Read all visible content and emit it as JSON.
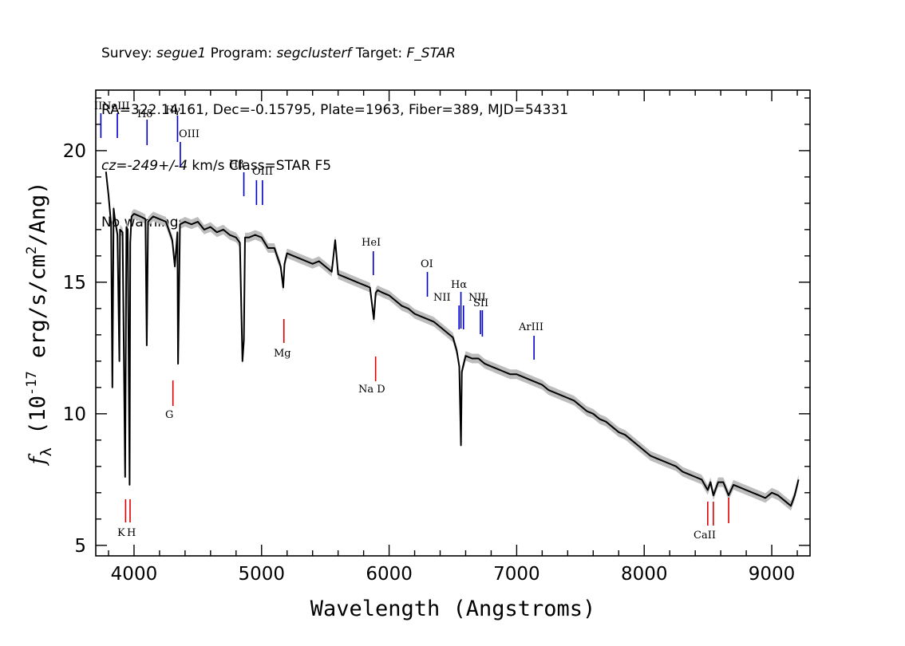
{
  "header": {
    "line1": {
      "survey_label": "Survey: ",
      "survey": "segue1",
      "program_label": " Program: ",
      "program": "segclusterf",
      "target_label": " Target: ",
      "target": "F_STAR"
    },
    "line2": "RA=322.14161, Dec=-0.15795, Plate=1963, Fiber=389, MJD=54331",
    "line3": {
      "cz": "cz=-249+/-4",
      "rest": " km/s Class=STAR F5"
    },
    "line4": "No warnings."
  },
  "chart_data": {
    "type": "line",
    "title": "",
    "xlabel": "Wavelength (Angstroms)",
    "ylabel": "f_λ (10^-17 erg/s/cm^2/Ang)",
    "xlim": [
      3700,
      9300
    ],
    "ylim": [
      4.6,
      22.3
    ],
    "xticks": [
      4000,
      5000,
      6000,
      7000,
      8000,
      9000
    ],
    "yticks": [
      5,
      10,
      15,
      20
    ],
    "grid": false,
    "legend": "none",
    "colors": {
      "flux": "#000000",
      "error_band": "#bdbdbd",
      "emission": "#0000cc",
      "absorption": "#dd0000"
    },
    "series": [
      {
        "values_note": "",
        "x": [
          3780,
          3800,
          3820,
          3830,
          3840,
          3850,
          3870,
          3885,
          3890,
          3910,
          3930,
          3940,
          3950,
          3965,
          3970,
          3980,
          4000,
          4050,
          4090,
          4100,
          4110,
          4150,
          4200,
          4250,
          4300,
          4320,
          4340,
          4345,
          4360,
          4400,
          4450,
          4500,
          4550,
          4600,
          4650,
          4700,
          4750,
          4800,
          4830,
          4850,
          4861,
          4870,
          4900,
          4950,
          5000,
          5050,
          5100,
          5150,
          5170,
          5180,
          5200,
          5250,
          5300,
          5350,
          5400,
          5450,
          5500,
          5550,
          5577,
          5600,
          5650,
          5700,
          5750,
          5800,
          5850,
          5880,
          5895,
          5910,
          5950,
          6000,
          6050,
          6100,
          6150,
          6200,
          6250,
          6300,
          6350,
          6400,
          6450,
          6500,
          6530,
          6550,
          6563,
          6570,
          6600,
          6650,
          6700,
          6750,
          6800,
          6850,
          6900,
          6950,
          7000,
          7050,
          7100,
          7150,
          7200,
          7250,
          7300,
          7350,
          7400,
          7450,
          7500,
          7550,
          7600,
          7650,
          7700,
          7750,
          7800,
          7850,
          7900,
          7950,
          8000,
          8050,
          8100,
          8150,
          8200,
          8250,
          8300,
          8350,
          8400,
          8450,
          8498,
          8520,
          8542,
          8580,
          8620,
          8662,
          8700,
          8750,
          8800,
          8850,
          8900,
          8950,
          9000,
          9050,
          9100,
          9150,
          9180,
          9210
        ],
        "y": [
          19.2,
          18.3,
          17.2,
          11.0,
          17.8,
          17.4,
          16.8,
          12.0,
          17.0,
          16.9,
          7.6,
          17.1,
          17.0,
          7.3,
          16.5,
          17.5,
          17.6,
          17.5,
          17.4,
          12.6,
          17.3,
          17.5,
          17.4,
          17.3,
          16.6,
          15.6,
          16.9,
          11.9,
          17.2,
          17.3,
          17.2,
          17.3,
          17.0,
          17.1,
          16.9,
          17.0,
          16.8,
          16.7,
          16.5,
          12.0,
          12.8,
          16.7,
          16.7,
          16.8,
          16.7,
          16.3,
          16.3,
          15.6,
          14.8,
          15.7,
          16.1,
          16.0,
          15.9,
          15.8,
          15.7,
          15.8,
          15.6,
          15.4,
          16.6,
          15.3,
          15.2,
          15.1,
          15.0,
          14.9,
          14.8,
          13.6,
          14.6,
          14.7,
          14.6,
          14.5,
          14.3,
          14.1,
          14.0,
          13.8,
          13.7,
          13.6,
          13.5,
          13.3,
          13.1,
          12.9,
          12.4,
          11.8,
          8.8,
          11.6,
          12.2,
          12.1,
          12.1,
          11.9,
          11.8,
          11.7,
          11.6,
          11.5,
          11.5,
          11.4,
          11.3,
          11.2,
          11.1,
          10.9,
          10.8,
          10.7,
          10.6,
          10.5,
          10.3,
          10.1,
          10.0,
          9.8,
          9.7,
          9.5,
          9.3,
          9.2,
          9.0,
          8.8,
          8.6,
          8.4,
          8.3,
          8.2,
          8.1,
          8.0,
          7.8,
          7.7,
          7.6,
          7.5,
          7.1,
          7.4,
          6.9,
          7.4,
          7.4,
          6.9,
          7.3,
          7.2,
          7.1,
          7.0,
          6.9,
          6.8,
          7.0,
          6.9,
          6.7,
          6.5,
          6.9,
          7.5
        ]
      }
    ],
    "line_annotations": [
      {
        "label": "He II",
        "x": 3740,
        "kind": "emission",
        "label_shown": "II"
      },
      {
        "label": "NeIII",
        "x": 3869,
        "kind": "emission"
      },
      {
        "label": "Hδ",
        "x": 4102,
        "kind": "emission"
      },
      {
        "label": "Hγ",
        "x": 4341,
        "kind": "emission"
      },
      {
        "label": "OIII",
        "x": 4363,
        "kind": "emission"
      },
      {
        "label": "Hβ",
        "x": 4861,
        "kind": "emission"
      },
      {
        "label": "OIII",
        "x": 4960,
        "kind": "emission"
      },
      {
        "label": "OIII_b",
        "x": 5007,
        "kind": "emission",
        "label_shown": ""
      },
      {
        "label": "HeI",
        "x": 5876,
        "kind": "emission"
      },
      {
        "label": "OI",
        "x": 6300,
        "kind": "emission"
      },
      {
        "label": "NII",
        "x": 6548,
        "kind": "emission"
      },
      {
        "label": "Hα",
        "x": 6563,
        "kind": "emission"
      },
      {
        "label": "NII",
        "x": 6583,
        "kind": "emission"
      },
      {
        "label": "SII",
        "x": 6716,
        "kind": "emission"
      },
      {
        "label": "SII_b",
        "x": 6731,
        "kind": "emission",
        "label_shown": ""
      },
      {
        "label": "ArIII",
        "x": 7136,
        "kind": "emission"
      },
      {
        "label": "K",
        "x": 3934,
        "kind": "absorption"
      },
      {
        "label": "H",
        "x": 3969,
        "kind": "absorption"
      },
      {
        "label": "G",
        "x": 4305,
        "kind": "absorption"
      },
      {
        "label": "Mg",
        "x": 5175,
        "kind": "absorption"
      },
      {
        "label": "Na D",
        "x": 5894,
        "kind": "absorption"
      },
      {
        "label": "CaII",
        "x": 8498,
        "kind": "absorption"
      },
      {
        "label": "CaII_b",
        "x": 8542,
        "kind": "absorption",
        "label_shown": ""
      },
      {
        "label": "CaII_c",
        "x": 8662,
        "kind": "absorption",
        "label_shown": ""
      }
    ]
  }
}
